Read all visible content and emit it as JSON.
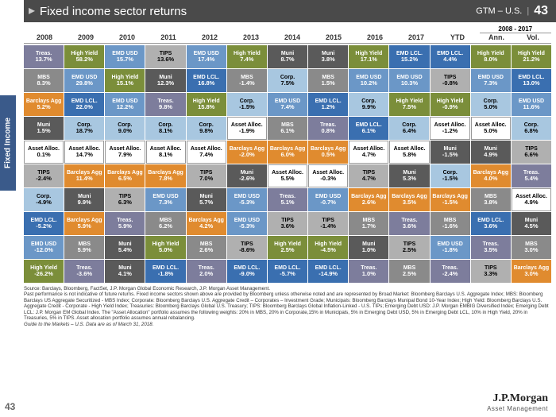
{
  "header": {
    "title": "Fixed income sector returns",
    "gtm": "GTM – U.S.",
    "page": "43"
  },
  "sidebar": {
    "label": "Fixed Income"
  },
  "spanHead": "2008 - 2017",
  "columns": [
    "2008",
    "2009",
    "2010",
    "2011",
    "2012",
    "2013",
    "2014",
    "2015",
    "2016",
    "2017",
    "YTD",
    "Ann.",
    "Vol."
  ],
  "colors": {
    "Treas.": "#7d7d9c",
    "High Yield": "#7b8e3a",
    "EMD USD": "#6b97c7",
    "TIPS": "#b0b0b0",
    "MBS": "#8a8a8a",
    "EMD LCL.": "#3a6fb0",
    "Barclays Agg": "#e08b2f",
    "Muni": "#5a5a5a",
    "Corp.": "#a8c7e0",
    "Asset Alloc.": "#ffffff"
  },
  "textColors": {
    "Asset Alloc.": "#000000",
    "Corp.": "#000000",
    "TIPS": "#000000"
  },
  "grid": [
    [
      [
        "Treas.",
        "13.7%"
      ],
      [
        "High Yield",
        "58.2%"
      ],
      [
        "EMD USD",
        "15.7%"
      ],
      [
        "TIPS",
        "13.6%"
      ],
      [
        "EMD USD",
        "17.4%"
      ],
      [
        "High Yield",
        "7.4%"
      ],
      [
        "Muni",
        "8.7%"
      ],
      [
        "Muni",
        "3.8%"
      ],
      [
        "High Yield",
        "17.1%"
      ],
      [
        "EMD LCL.",
        "15.2%"
      ],
      [
        "EMD LCL.",
        "4.4%"
      ],
      [
        "High Yield",
        "8.0%"
      ],
      [
        "High Yield",
        "21.2%"
      ]
    ],
    [
      [
        "MBS",
        "8.3%"
      ],
      [
        "EMD USD",
        "29.8%"
      ],
      [
        "High Yield",
        "15.1%"
      ],
      [
        "Muni",
        "12.3%"
      ],
      [
        "EMD LCL.",
        "16.8%"
      ],
      [
        "MBS",
        "-1.4%"
      ],
      [
        "Corp.",
        "7.5%"
      ],
      [
        "MBS",
        "1.5%"
      ],
      [
        "EMD USD",
        "10.2%"
      ],
      [
        "EMD USD",
        "10.3%"
      ],
      [
        "TIPS",
        "-0.8%"
      ],
      [
        "EMD USD",
        "7.3%"
      ],
      [
        "EMD LCL.",
        "13.0%"
      ]
    ],
    [
      [
        "Barclays Agg",
        "5.2%"
      ],
      [
        "EMD LCL.",
        "22.0%"
      ],
      [
        "EMD USD",
        "12.2%"
      ],
      [
        "Treas.",
        "9.8%"
      ],
      [
        "High Yield",
        "15.8%"
      ],
      [
        "Corp.",
        "-1.5%"
      ],
      [
        "EMD USD",
        "7.4%"
      ],
      [
        "EMD LCL.",
        "1.2%"
      ],
      [
        "Corp.",
        "9.9%"
      ],
      [
        "High Yield",
        "7.5%"
      ],
      [
        "High Yield",
        "-0.9%"
      ],
      [
        "Corp.",
        "5.0%"
      ],
      [
        "EMD USD",
        "11.6%"
      ]
    ],
    [
      [
        "Muni",
        "1.5%"
      ],
      [
        "Corp.",
        "18.7%"
      ],
      [
        "Corp.",
        "9.0%"
      ],
      [
        "Corp.",
        "8.1%"
      ],
      [
        "Corp.",
        "9.8%"
      ],
      [
        "Asset Alloc.",
        "-1.9%"
      ],
      [
        "MBS",
        "6.1%"
      ],
      [
        "Treas.",
        "0.8%"
      ],
      [
        "EMD LCL.",
        "6.1%"
      ],
      [
        "Corp.",
        "6.4%"
      ],
      [
        "Asset Alloc.",
        "-1.2%"
      ],
      [
        "Asset Alloc.",
        "5.0%"
      ],
      [
        "Corp.",
        "6.8%"
      ]
    ],
    [
      [
        "Asset Alloc.",
        "0.1%"
      ],
      [
        "Asset Alloc.",
        "14.7%"
      ],
      [
        "Asset Alloc.",
        "7.9%"
      ],
      [
        "Asset Alloc.",
        "8.1%"
      ],
      [
        "Asset Alloc.",
        "7.4%"
      ],
      [
        "Barclays Agg",
        "-2.0%"
      ],
      [
        "Barclays Agg",
        "6.0%"
      ],
      [
        "Barclays Agg",
        "0.5%"
      ],
      [
        "Asset Alloc.",
        "4.7%"
      ],
      [
        "Asset Alloc.",
        "5.8%"
      ],
      [
        "Muni",
        "-1.5%"
      ],
      [
        "Muni",
        "4.9%"
      ],
      [
        "TIPS",
        "6.6%"
      ]
    ],
    [
      [
        "TIPS",
        "-2.4%"
      ],
      [
        "Barclays Agg",
        "11.4%"
      ],
      [
        "Barclays Agg",
        "6.5%"
      ],
      [
        "Barclays Agg",
        "7.8%"
      ],
      [
        "TIPS",
        "7.0%"
      ],
      [
        "Muni",
        "-2.6%"
      ],
      [
        "Asset Alloc.",
        "5.5%"
      ],
      [
        "Asset Alloc.",
        "-0.3%"
      ],
      [
        "TIPS",
        "4.7%"
      ],
      [
        "Muni",
        "5.3%"
      ],
      [
        "Corp.",
        "-1.5%"
      ],
      [
        "Barclays Agg",
        "4.0%"
      ],
      [
        "Treas.",
        "5.4%"
      ]
    ],
    [
      [
        "Corp.",
        "-4.9%"
      ],
      [
        "Muni",
        "9.9%"
      ],
      [
        "TIPS",
        "6.3%"
      ],
      [
        "EMD USD",
        "7.3%"
      ],
      [
        "Muni",
        "5.7%"
      ],
      [
        "EMD USD",
        "-5.3%"
      ],
      [
        "Treas.",
        "5.1%"
      ],
      [
        "EMD USD",
        "-0.7%"
      ],
      [
        "Barclays Agg",
        "2.6%"
      ],
      [
        "Barclays Agg",
        "3.5%"
      ],
      [
        "Barclays Agg",
        "-1.5%"
      ],
      [
        "MBS",
        "3.8%"
      ],
      [
        "Asset Alloc.",
        "4.9%"
      ]
    ],
    [
      [
        "EMD LCL.",
        "-5.2%"
      ],
      [
        "Barclays Agg",
        "5.9%"
      ],
      [
        "Treas.",
        "5.9%"
      ],
      [
        "MBS",
        "6.2%"
      ],
      [
        "Barclays Agg",
        "4.2%"
      ],
      [
        "EMD USD",
        "-5.3%"
      ],
      [
        "TIPS",
        "3.6%"
      ],
      [
        "TIPS",
        "-1.4%"
      ],
      [
        "MBS",
        "1.7%"
      ],
      [
        "Treas.",
        "3.6%"
      ],
      [
        "MBS",
        "-1.6%"
      ],
      [
        "EMD LCL.",
        "3.6%"
      ],
      [
        "Muni",
        "4.5%"
      ]
    ],
    [
      [
        "EMD USD",
        "-12.0%"
      ],
      [
        "MBS",
        "5.9%"
      ],
      [
        "Muni",
        "5.4%"
      ],
      [
        "High Yield",
        "5.0%"
      ],
      [
        "MBS",
        "2.6%"
      ],
      [
        "TIPS",
        "-8.6%"
      ],
      [
        "High Yield",
        "2.5%"
      ],
      [
        "High Yield",
        "-4.5%"
      ],
      [
        "Muni",
        "1.0%"
      ],
      [
        "TIPS",
        "2.5%"
      ],
      [
        "EMD USD",
        "-1.8%"
      ],
      [
        "Treas.",
        "3.5%"
      ],
      [
        "MBS",
        "3.0%"
      ]
    ],
    [
      [
        "High Yield",
        "-26.2%"
      ],
      [
        "Treas.",
        "-3.6%"
      ],
      [
        "Muni",
        "4.1%"
      ],
      [
        "EMD LCL.",
        "-1.8%"
      ],
      [
        "Treas.",
        "2.0%"
      ],
      [
        "EMD LCL.",
        "-9.0%"
      ],
      [
        "EMD LCL.",
        "-5.7%"
      ],
      [
        "EMD LCL.",
        "-14.9%"
      ],
      [
        "Treas.",
        "1.0%"
      ],
      [
        "MBS",
        "2.5%"
      ],
      [
        "Treas.",
        "-2.4%"
      ],
      [
        "TIPS",
        "3.3%"
      ],
      [
        "Barclays Agg",
        "3.0%"
      ]
    ]
  ],
  "footnote": [
    "Source: Barclays, Bloomberg, FactSet, J.P. Morgan Global Economic Research, J.P. Morgan Asset Management.",
    "Past performance is not indicative of future returns. Fixed income sectors shown above are provided by Bloomberg unless otherwise noted and are represented by Broad Market: Bloomberg Barclays U.S. Aggregate Index; MBS: Bloomberg Barclays US Aggregate Securitized - MBS Index; Corporate: Bloomberg Barclays U.S. Aggregate Credit – Corporates – Investment Grade; Municipals: Bloomberg Barclays Munipal Bond 10-Year Index; High Yield: Bloomberg Barclays U.S. Aggregate Credit - Corporate - High Yield Index; Treasuries: Bloomberg Barclays Global U.S. Treasury;  TIPS: Bloomberg Barclays Global Inflation-Linked - U.S. TIPs; Emerging Debt USD: J.P. Morgan EMBIG Diversified Index; Emerging Debt LCL: J.P. Morgan EM Global Index. The \"Asset Allocation\" portfolio assumes the following weights: 20% in MBS, 20% in Corporate,15% in Municipals, 5% in Emerging Debt USD, 5% in Emerging Debt LCL, 10% in High Yield, 20% in Treasuries, 5% in TIPS. Asset allocation portfolio assumes annual rebalancing.",
    "Guide to the Markets – U.S. Data are as of March 31, 2018."
  ],
  "logo": {
    "main": "J.P.Morgan",
    "sub": "Asset Management"
  },
  "cornerPage": "43"
}
